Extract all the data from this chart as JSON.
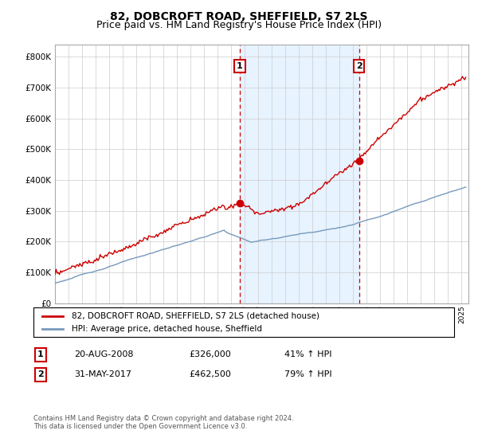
{
  "title": "82, DOBCROFT ROAD, SHEFFIELD, S7 2LS",
  "subtitle": "Price paid vs. HM Land Registry's House Price Index (HPI)",
  "ylabel_ticks": [
    "£0",
    "£100K",
    "£200K",
    "£300K",
    "£400K",
    "£500K",
    "£600K",
    "£700K",
    "£800K"
  ],
  "ylim": [
    0,
    840000
  ],
  "xlim_start": 1995.0,
  "xlim_end": 2025.5,
  "sale1_date": 2008.63,
  "sale1_price": 326000,
  "sale1_label": "1",
  "sale1_pct": "41% ↑ HPI",
  "sale2_date": 2017.42,
  "sale2_price": 462500,
  "sale2_label": "2",
  "sale2_pct": "79% ↑ HPI",
  "legend_line1": "82, DOBCROFT ROAD, SHEFFIELD, S7 2LS (detached house)",
  "legend_line2": "HPI: Average price, detached house, Sheffield",
  "annotation1_text": "20-AUG-2008",
  "annotation1_price": "£326,000",
  "annotation2_text": "31-MAY-2017",
  "annotation2_price": "£462,500",
  "footer": "Contains HM Land Registry data © Crown copyright and database right 2024.\nThis data is licensed under the Open Government Licence v3.0.",
  "red_color": "#cc0000",
  "blue_color": "#7799bb",
  "bg_shade": "#ddeeff",
  "grid_color": "#cccccc",
  "title_fontsize": 10,
  "subtitle_fontsize": 9
}
